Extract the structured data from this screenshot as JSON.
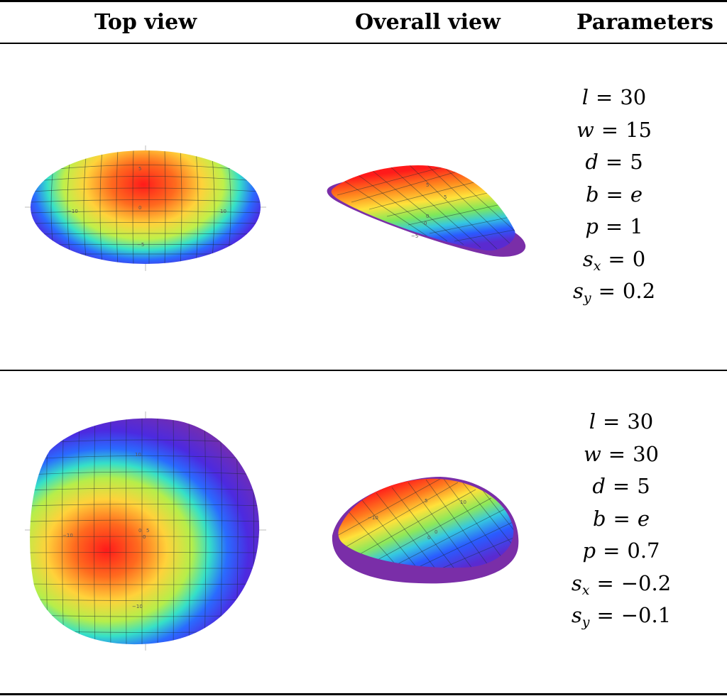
{
  "headers": {
    "top_view": "Top view",
    "overall_view": "Overall view",
    "parameters": "Parameters"
  },
  "rows": [
    {
      "params": [
        {
          "sym": "l",
          "sub": "",
          "value": "30"
        },
        {
          "sym": "w",
          "sub": "",
          "value": "15"
        },
        {
          "sym": "d",
          "sub": "",
          "value": "5"
        },
        {
          "sym": "b",
          "sub": "",
          "value": "e",
          "value_italic": true
        },
        {
          "sym": "p",
          "sub": "",
          "value": "1"
        },
        {
          "sym": "s",
          "sub": "x",
          "value": "0"
        },
        {
          "sym": "s",
          "sub": "y",
          "value": "0.2"
        }
      ],
      "top_ticks": [
        "5",
        "−10",
        "0",
        "10",
        "−5"
      ],
      "overall_ticks": [
        "5",
        "0",
        "0",
        "−5",
        "5"
      ]
    },
    {
      "params": [
        {
          "sym": "l",
          "sub": "",
          "value": "30"
        },
        {
          "sym": "w",
          "sub": "",
          "value": "30"
        },
        {
          "sym": "d",
          "sub": "",
          "value": "5"
        },
        {
          "sym": "b",
          "sub": "",
          "value": "e",
          "value_italic": true
        },
        {
          "sym": "p",
          "sub": "",
          "value": "0.7"
        },
        {
          "sym": "s",
          "sub": "x",
          "value": "−0.2"
        },
        {
          "sym": "s",
          "sub": "y",
          "value": "−0.1"
        }
      ],
      "top_ticks": [
        "10",
        "−10",
        "0",
        "5",
        "0",
        "−10"
      ],
      "overall_ticks": [
        "−10",
        "5",
        "10",
        "0",
        "0"
      ]
    }
  ],
  "colors": {
    "rule": "#000000",
    "surface_peak": "#ff2a1a",
    "surface_edge": "#7a2ea8"
  }
}
